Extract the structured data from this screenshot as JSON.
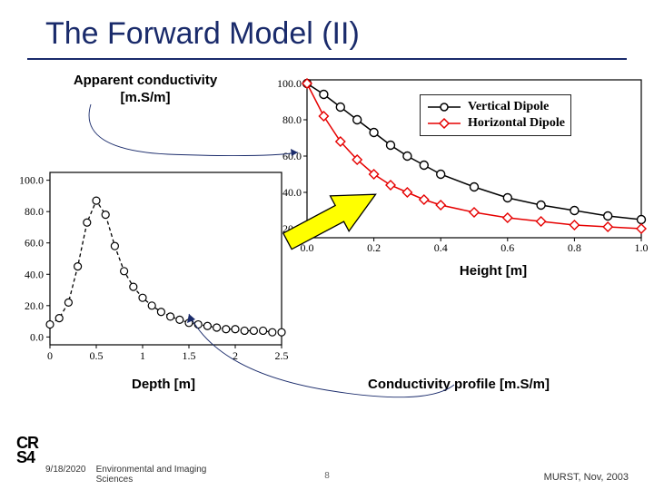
{
  "title": "The Forward Model (II)",
  "labels": {
    "apparent": "Apparent conductivity\n[m.S/m]",
    "height": "Height [m]",
    "depth": "Depth [m]",
    "profile": "Conductivity profile\n[m.S/m]"
  },
  "chart_depth": {
    "type": "line",
    "xlim": [
      0,
      2.5
    ],
    "xtick_step": 0.5,
    "ylim": [
      -5,
      105
    ],
    "ytick_step": 20,
    "ytick_start": 0,
    "title_fontsize": 14,
    "tick_font": 12,
    "series_color": "#000000",
    "marker": "o",
    "marker_size": 4,
    "dash": "4 3",
    "x": [
      0.0,
      0.1,
      0.2,
      0.3,
      0.4,
      0.5,
      0.6,
      0.7,
      0.8,
      0.9,
      1.0,
      1.1,
      1.2,
      1.3,
      1.4,
      1.5,
      1.6,
      1.7,
      1.8,
      1.9,
      2.0,
      2.1,
      2.2,
      2.3,
      2.4,
      2.5
    ],
    "y": [
      8,
      12,
      22,
      45,
      73,
      87,
      78,
      58,
      42,
      32,
      25,
      20,
      16,
      13,
      11,
      9,
      8,
      7,
      6,
      5,
      5,
      4,
      4,
      4,
      3,
      3
    ]
  },
  "chart_height": {
    "type": "line",
    "xlim": [
      0,
      1.0
    ],
    "xtick_step": 0.2,
    "ylim": [
      15,
      102
    ],
    "ytick_step": 20,
    "ytick_start": 20,
    "tick_font": 12,
    "series": [
      {
        "name": "Vertical Dipole",
        "color": "#000000",
        "marker": "o",
        "marker_size": 4.5,
        "x": [
          0.0,
          0.05,
          0.1,
          0.15,
          0.2,
          0.25,
          0.3,
          0.35,
          0.4,
          0.5,
          0.6,
          0.7,
          0.8,
          0.9,
          1.0
        ],
        "y": [
          100,
          94,
          87,
          80,
          73,
          66,
          60,
          55,
          50,
          43,
          37,
          33,
          30,
          27,
          25
        ]
      },
      {
        "name": "Horizontal Dipole",
        "color": "#e60000",
        "marker": "diamond",
        "marker_size": 5,
        "x": [
          0.0,
          0.05,
          0.1,
          0.15,
          0.2,
          0.25,
          0.3,
          0.35,
          0.4,
          0.5,
          0.6,
          0.7,
          0.8,
          0.9,
          1.0
        ],
        "y": [
          100,
          82,
          68,
          58,
          50,
          44,
          40,
          36,
          33,
          29,
          26,
          24,
          22,
          21,
          20
        ]
      }
    ]
  },
  "legend_box": {
    "bg": "#ffffff",
    "border": "#222222"
  },
  "arrow_yellow": {
    "fill": "#ffff00",
    "stroke": "#000000"
  },
  "curve_arrows": {
    "color": "#1a2b6b",
    "width": 0.8
  },
  "logo": {
    "l1": "CR",
    "l2": "S4"
  },
  "footer": {
    "date": "9/18/2020",
    "dept": "Environmental and Imaging\nSciences",
    "venue": "MURST, Nov, 2003",
    "page": "8"
  }
}
